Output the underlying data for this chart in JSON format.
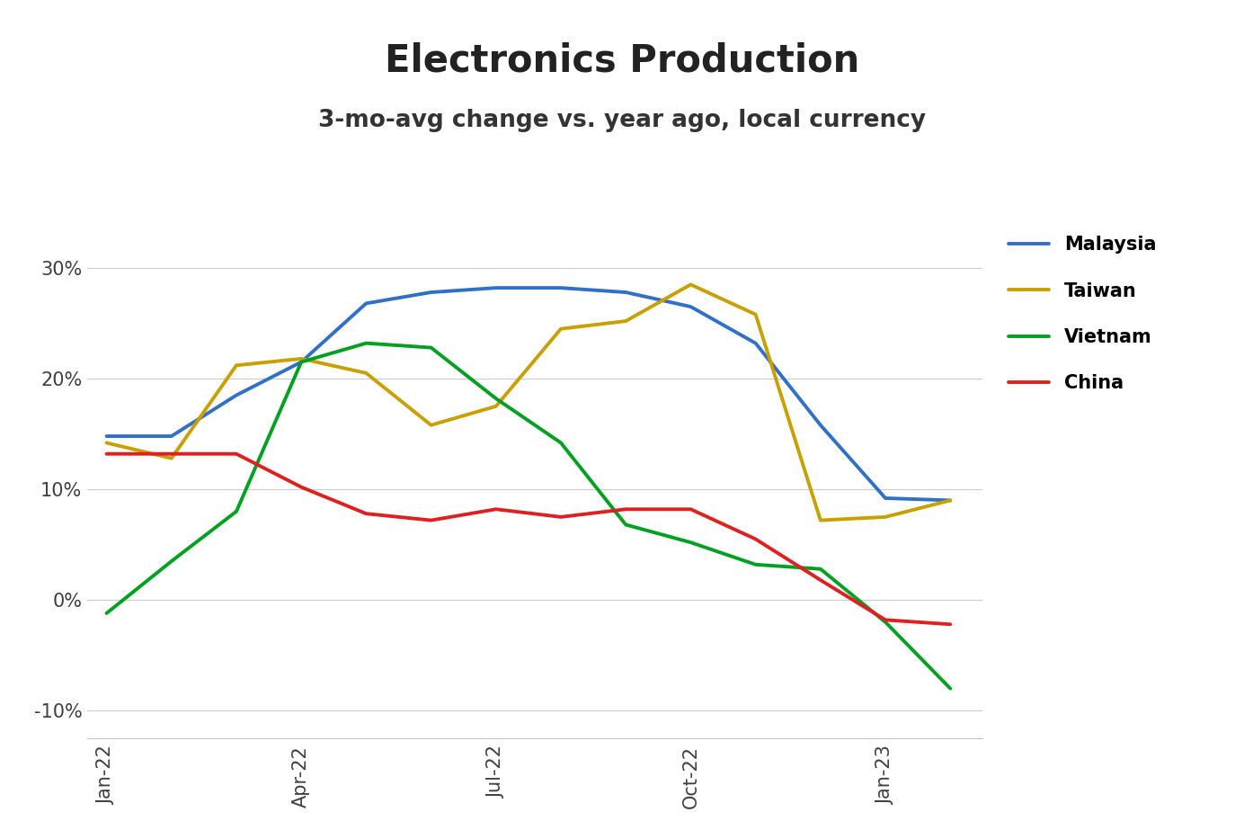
{
  "title": "Electronics Production",
  "subtitle": "3-mo-avg change vs. year ago, local currency",
  "x_labels": [
    "Jan-22",
    "Apr-22",
    "Jul-22",
    "Oct-22",
    "Jan-23"
  ],
  "x_tick_positions": [
    0,
    3,
    6,
    9,
    12
  ],
  "malaysia": {
    "label": "Malaysia",
    "color": "#3070C8",
    "x": [
      0,
      1,
      2,
      3,
      4,
      5,
      6,
      7,
      8,
      9,
      10,
      11,
      12,
      13
    ],
    "y": [
      0.148,
      0.148,
      0.185,
      0.215,
      0.268,
      0.278,
      0.282,
      0.282,
      0.278,
      0.265,
      0.232,
      0.158,
      0.092,
      0.09
    ]
  },
  "taiwan": {
    "label": "Taiwan",
    "color": "#C8A000",
    "x": [
      0,
      1,
      2,
      3,
      4,
      5,
      6,
      7,
      8,
      9,
      10,
      11,
      12,
      13
    ],
    "y": [
      0.142,
      0.128,
      0.212,
      0.218,
      0.205,
      0.158,
      0.175,
      0.245,
      0.252,
      0.285,
      0.258,
      0.072,
      0.075,
      0.09
    ]
  },
  "vietnam": {
    "label": "Vietnam",
    "color": "#00A020",
    "x": [
      0,
      1,
      2,
      3,
      4,
      5,
      6,
      7,
      8,
      9,
      10,
      11,
      12,
      13
    ],
    "y": [
      -0.012,
      0.035,
      0.08,
      0.215,
      0.232,
      0.228,
      0.182,
      0.142,
      0.068,
      0.052,
      0.032,
      0.028,
      -0.02,
      -0.08
    ]
  },
  "china": {
    "label": "China",
    "color": "#E02020",
    "x": [
      0,
      1,
      2,
      3,
      4,
      5,
      6,
      7,
      8,
      9,
      10,
      11,
      12,
      13
    ],
    "y": [
      0.132,
      0.132,
      0.132,
      0.102,
      0.078,
      0.072,
      0.082,
      0.075,
      0.082,
      0.082,
      0.055,
      0.018,
      -0.018,
      -0.022
    ]
  },
  "ylim": [
    -0.125,
    0.345
  ],
  "yticks": [
    -0.1,
    0.0,
    0.1,
    0.2,
    0.3
  ],
  "ytick_labels": [
    "-10%",
    "0%",
    "10%",
    "20%",
    "30%"
  ],
  "linewidth": 2.8,
  "legend_fontsize": 15,
  "title_fontsize": 30,
  "subtitle_fontsize": 19,
  "tick_fontsize": 15
}
